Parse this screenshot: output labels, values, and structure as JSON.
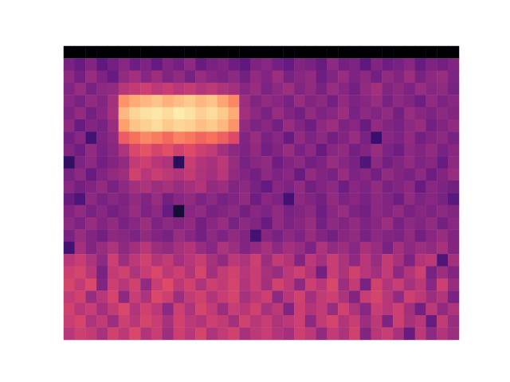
{
  "chart_data": {
    "type": "heatmap",
    "tick_labels": false,
    "color_range": [
      -80,
      0
    ],
    "cells": [
      [
        -80,
        -80,
        -80,
        -80,
        -80,
        -80,
        -80,
        -80,
        -80,
        -80,
        -80,
        -80,
        -80,
        -80,
        -80,
        -80,
        -80,
        -80,
        -80,
        -80,
        -80,
        -80,
        -80,
        -80,
        -80,
        -80,
        -80,
        -80,
        -80,
        -80,
        -80,
        -80,
        -80,
        -80,
        -80,
        -80
      ],
      [
        -52,
        -55,
        -50,
        -57,
        -53,
        -49,
        -54,
        -51,
        -56,
        -50,
        -53,
        -48,
        -55,
        -52,
        -50,
        -54,
        -57,
        -51,
        -49,
        -53,
        -56,
        -50,
        -52,
        -55,
        -48,
        -53,
        -51,
        -57,
        -50,
        -54,
        -52,
        -49,
        -55,
        -51,
        -53,
        -50
      ],
      [
        -48,
        -53,
        -46,
        -51,
        -55,
        -47,
        -44,
        -49,
        -45,
        -50,
        -47,
        -52,
        -46,
        -49,
        -51,
        -48,
        -53,
        -47,
        -50,
        -45,
        -52,
        -49,
        -47,
        -54,
        -50,
        -46,
        -51,
        -48,
        -53,
        -47,
        -50,
        -45,
        -52,
        -48,
        -46,
        -51
      ],
      [
        -50,
        -46,
        -52,
        -48,
        -47,
        -40,
        -38,
        -36,
        -39,
        -37,
        -40,
        -38,
        -41,
        -39,
        -42,
        -44,
        -49,
        -46,
        -51,
        -48,
        -45,
        -50,
        -47,
        -52,
        -46,
        -49,
        -53,
        -47,
        -44,
        -50,
        -48,
        -51,
        -46,
        -49,
        -47,
        -52
      ],
      [
        -49,
        -52,
        -47,
        -50,
        -44,
        -18,
        -14,
        -12,
        -10,
        -13,
        -11,
        -9,
        -12,
        -10,
        -15,
        -20,
        -45,
        -50,
        -47,
        -49,
        -52,
        -46,
        -50,
        -48,
        -53,
        -47,
        -51,
        -49,
        -46,
        -52,
        -48,
        -50,
        -54,
        -47,
        -51,
        -49
      ],
      [
        -51,
        -47,
        -53,
        -49,
        -43,
        -12,
        -7,
        -5,
        -4,
        -6,
        -3,
        -5,
        -8,
        -6,
        -9,
        -14,
        -44,
        -48,
        -52,
        -46,
        -50,
        -53,
        -47,
        -51,
        -49,
        -45,
        -52,
        -48,
        -50,
        -47,
        -53,
        -46,
        -49,
        -51,
        -48,
        -50
      ],
      [
        -48,
        -55,
        -50,
        -52,
        -46,
        -16,
        -10,
        -8,
        -6,
        -9,
        -7,
        -8,
        -11,
        -9,
        -12,
        -18,
        -47,
        -51,
        -49,
        -53,
        -46,
        -50,
        -54,
        -48,
        -45,
        -51,
        -49,
        -55,
        -47,
        -50,
        -52,
        -48,
        -46,
        -53,
        -50,
        -47
      ],
      [
        -53,
        -49,
        -62,
        -51,
        -48,
        -28,
        -24,
        -20,
        -22,
        -25,
        -21,
        -23,
        -26,
        -24,
        -27,
        -32,
        -50,
        -46,
        -52,
        -49,
        -55,
        -47,
        -51,
        -48,
        -53,
        -50,
        -46,
        -52,
        -64,
        -49,
        -51,
        -47,
        -53,
        -50,
        -48,
        -52
      ],
      [
        -50,
        -54,
        -47,
        -52,
        -49,
        -42,
        -33,
        -30,
        -34,
        -31,
        -35,
        -32,
        -36,
        -38,
        -44,
        -48,
        -51,
        -47,
        -53,
        -50,
        -46,
        -52,
        -48,
        -55,
        -49,
        -47,
        -53,
        -50,
        -46,
        -51,
        -54,
        -48,
        -50,
        -47,
        -52,
        -49
      ],
      [
        -66,
        -51,
        -48,
        -53,
        -50,
        -47,
        -38,
        -36,
        -40,
        -42,
        -67,
        -37,
        -41,
        -43,
        -39,
        -46,
        -52,
        -49,
        -47,
        -54,
        -50,
        -48,
        -53,
        -51,
        -46,
        -49,
        -52,
        -60,
        -48,
        -53,
        -50,
        -47,
        -51,
        -49,
        -55,
        -48
      ],
      [
        -52,
        -48,
        -55,
        -50,
        -47,
        -45,
        -35,
        -40,
        -37,
        -39,
        -41,
        -38,
        -42,
        -44,
        -40,
        -47,
        -50,
        -53,
        -48,
        -51,
        -49,
        -55,
        -47,
        -50,
        -52,
        -46,
        -51,
        -49,
        -53,
        -47,
        -50,
        -52,
        -48,
        -54,
        -50,
        -46
      ],
      [
        -49,
        -53,
        -50,
        -47,
        -52,
        -48,
        -44,
        -42,
        -45,
        -43,
        -46,
        -44,
        -41,
        -47,
        -45,
        -50,
        -48,
        -52,
        -56,
        -49,
        -51,
        -47,
        -53,
        -50,
        -48,
        -54,
        -49,
        -51,
        -47,
        -52,
        -50,
        -48,
        -55,
        -49,
        -51,
        -53
      ],
      [
        -55,
        -60,
        -48,
        -52,
        -49,
        -51,
        -47,
        -50,
        -46,
        -53,
        -49,
        -47,
        -51,
        -48,
        -52,
        -50,
        -47,
        -54,
        -49,
        -51,
        -62,
        -48,
        -50,
        -53,
        -47,
        -51,
        -49,
        -52,
        -48,
        -50,
        -54,
        -47,
        -51,
        -49,
        -52,
        -58
      ],
      [
        -50,
        -47,
        -52,
        -49,
        -53,
        -50,
        -46,
        -51,
        -48,
        -55,
        -72,
        -49,
        -47,
        -52,
        -50,
        -48,
        -53,
        -49,
        -51,
        -47,
        -52,
        -50,
        -48,
        -54,
        -49,
        -46,
        -51,
        -53,
        -48,
        -50,
        -47,
        -52,
        -49,
        -51,
        -48,
        -50
      ],
      [
        -48,
        -51,
        -46,
        -50,
        -47,
        -52,
        -49,
        -45,
        -51,
        -48,
        -50,
        -47,
        -53,
        -49,
        -46,
        -52,
        -48,
        -50,
        -55,
        -47,
        -51,
        -49,
        -46,
        -53,
        -48,
        -50,
        -47,
        -51,
        -49,
        -45,
        -52,
        -48,
        -50,
        -47,
        -53,
        -49
      ],
      [
        -52,
        -46,
        -50,
        -53,
        -48,
        -49,
        -51,
        -47,
        -50,
        -52,
        -46,
        -49,
        -53,
        -48,
        -51,
        -47,
        -50,
        -62,
        -49,
        -52,
        -48,
        -51,
        -46,
        -50,
        -53,
        -49,
        -47,
        -52,
        -48,
        -50,
        -51,
        -47,
        -53,
        -49,
        -46,
        -50
      ],
      [
        -62,
        -44,
        -50,
        -46,
        -42,
        -48,
        -44,
        -40,
        -45,
        -47,
        -43,
        -41,
        -46,
        -49,
        -42,
        -45,
        -50,
        -47,
        -43,
        -48,
        -44,
        -46,
        -51,
        -42,
        -47,
        -45,
        -49,
        -43,
        -46,
        -52,
        -44,
        -48,
        -45,
        -47,
        -43,
        -50
      ],
      [
        -40,
        -37,
        -42,
        -48,
        -36,
        -45,
        -39,
        -35,
        -41,
        -38,
        -44,
        -40,
        -37,
        -43,
        -47,
        -39,
        -42,
        -36,
        -45,
        -38,
        -41,
        -50,
        -39,
        -44,
        -37,
        -42,
        -48,
        -40,
        -46,
        -38,
        -43,
        -51,
        -41,
        -39,
        -60,
        -44
      ],
      [
        -36,
        -34,
        -40,
        -52,
        -38,
        -35,
        -42,
        -37,
        -33,
        -39,
        -36,
        -41,
        -34,
        -44,
        -38,
        -35,
        -40,
        -37,
        -43,
        -46,
        -39,
        -36,
        -41,
        -53,
        -37,
        -42,
        -35,
        -40,
        -44,
        -38,
        -48,
        -41,
        -36,
        -52,
        -45,
        -50
      ],
      [
        -34,
        -38,
        -33,
        -50,
        -36,
        -40,
        -35,
        -47,
        -37,
        -32,
        -39,
        -35,
        -42,
        -36,
        -38,
        -34,
        -41,
        -37,
        -44,
        -35,
        -39,
        -48,
        -36,
        -40,
        -33,
        -45,
        -38,
        -52,
        -35,
        -41,
        -37,
        -43,
        -39,
        -49,
        -36,
        -46
      ],
      [
        -38,
        -35,
        -46,
        -40,
        -34,
        -48,
        -37,
        -42,
        -33,
        -36,
        -45,
        -38,
        -35,
        -41,
        -37,
        -34,
        -43,
        -39,
        -36,
        -48,
        -40,
        -35,
        -44,
        -38,
        -36,
        -42,
        -50,
        -37,
        -34,
        -40,
        -47,
        -36,
        -39,
        -45,
        -41,
        -52
      ],
      [
        -35,
        -40,
        -37,
        -44,
        -38,
        -33,
        -41,
        -35,
        -39,
        -48,
        -36,
        -42,
        -34,
        -38,
        -45,
        -37,
        -40,
        -35,
        -43,
        -39,
        -50,
        -36,
        -41,
        -38,
        -46,
        -35,
        -42,
        -49,
        -37,
        -40,
        -36,
        -44,
        -53,
        -39,
        -47,
        -42
      ],
      [
        -37,
        -34,
        -42,
        -38,
        -45,
        -36,
        -40,
        -34,
        -37,
        -43,
        -35,
        -39,
        -41,
        -36,
        -38,
        -44,
        -35,
        -40,
        -37,
        -42,
        -39,
        -36,
        -48,
        -38,
        -34,
        -41,
        -37,
        -45,
        -39,
        -51,
        -36,
        -43,
        -40,
        -55,
        -38,
        -46
      ],
      [
        -40,
        -36,
        -38,
        -43,
        -35,
        -39,
        -33,
        -41,
        -37,
        -45,
        -36,
        -40,
        -34,
        -42,
        -38,
        -35,
        -43,
        -39,
        -37,
        -41,
        -44,
        -36,
        -39,
        -47,
        -38,
        -42,
        -35,
        -50,
        -40,
        -37,
        -43,
        -55,
        -39,
        -48,
        -41,
        -45
      ]
    ]
  }
}
